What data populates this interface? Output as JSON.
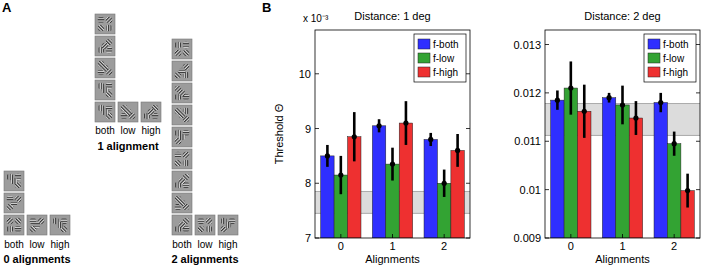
{
  "panel_a": {
    "label": "A",
    "groups": [
      {
        "title": "0 alignments",
        "columns": [
          "both",
          "low",
          "high"
        ]
      },
      {
        "title": "1 alignment",
        "columns": [
          "both",
          "low",
          "high"
        ]
      },
      {
        "title": "2 alignments",
        "columns": [
          "both",
          "low",
          "high"
        ]
      }
    ]
  },
  "panel_b_label": "B",
  "chart_data": [
    {
      "type": "bar",
      "title": "Distance: 1 deg",
      "x_label": "Alignments",
      "y_label": "Threshold Θ",
      "y_multiplier": "x 10⁻³",
      "categories": [
        "0",
        "1",
        "2"
      ],
      "series": [
        {
          "name": "f-both",
          "color": "#2f2fff",
          "values": [
            0.0085,
            0.00905,
            0.0088
          ],
          "errors": [
            0.0002,
            0.00012,
            0.00012
          ]
        },
        {
          "name": "f-low",
          "color": "#33a333",
          "values": [
            0.00815,
            0.00835,
            0.008
          ],
          "errors": [
            0.00035,
            0.0003,
            0.00025
          ]
        },
        {
          "name": "f-high",
          "color": "#ee3030",
          "values": [
            0.00885,
            0.0091,
            0.0086
          ],
          "errors": [
            0.00045,
            0.0004,
            0.0003
          ]
        }
      ],
      "reference_band": [
        0.00745,
        0.00785
      ],
      "ylim": [
        0.007,
        0.0108
      ],
      "yticks": [
        {
          "value": 0.007,
          "label": "7"
        },
        {
          "value": 0.008,
          "label": "8"
        },
        {
          "value": 0.009,
          "label": "9"
        },
        {
          "value": 0.01,
          "label": "10"
        }
      ],
      "legend": "upper right"
    },
    {
      "type": "bar",
      "title": "Distance: 2 deg",
      "x_label": "Alignments",
      "categories": [
        "0",
        "1",
        "2"
      ],
      "series": [
        {
          "name": "f-both",
          "color": "#2f2fff",
          "values": [
            0.01185,
            0.0119,
            0.0118
          ],
          "errors": [
            0.0002,
            0.0001,
            0.0002
          ]
        },
        {
          "name": "f-low",
          "color": "#33a333",
          "values": [
            0.0121,
            0.01175,
            0.01095
          ],
          "errors": [
            0.00055,
            0.0004,
            0.00025
          ]
        },
        {
          "name": "f-high",
          "color": "#ee3030",
          "values": [
            0.01162,
            0.01148,
            0.00998
          ],
          "errors": [
            0.00055,
            0.00035,
            0.00035
          ]
        }
      ],
      "reference_band": [
        0.01112,
        0.01178
      ],
      "ylim": [
        0.009,
        0.0133
      ],
      "yticks": [
        0.009,
        0.01,
        0.011,
        0.012,
        0.013
      ],
      "legend": "upper right"
    }
  ]
}
